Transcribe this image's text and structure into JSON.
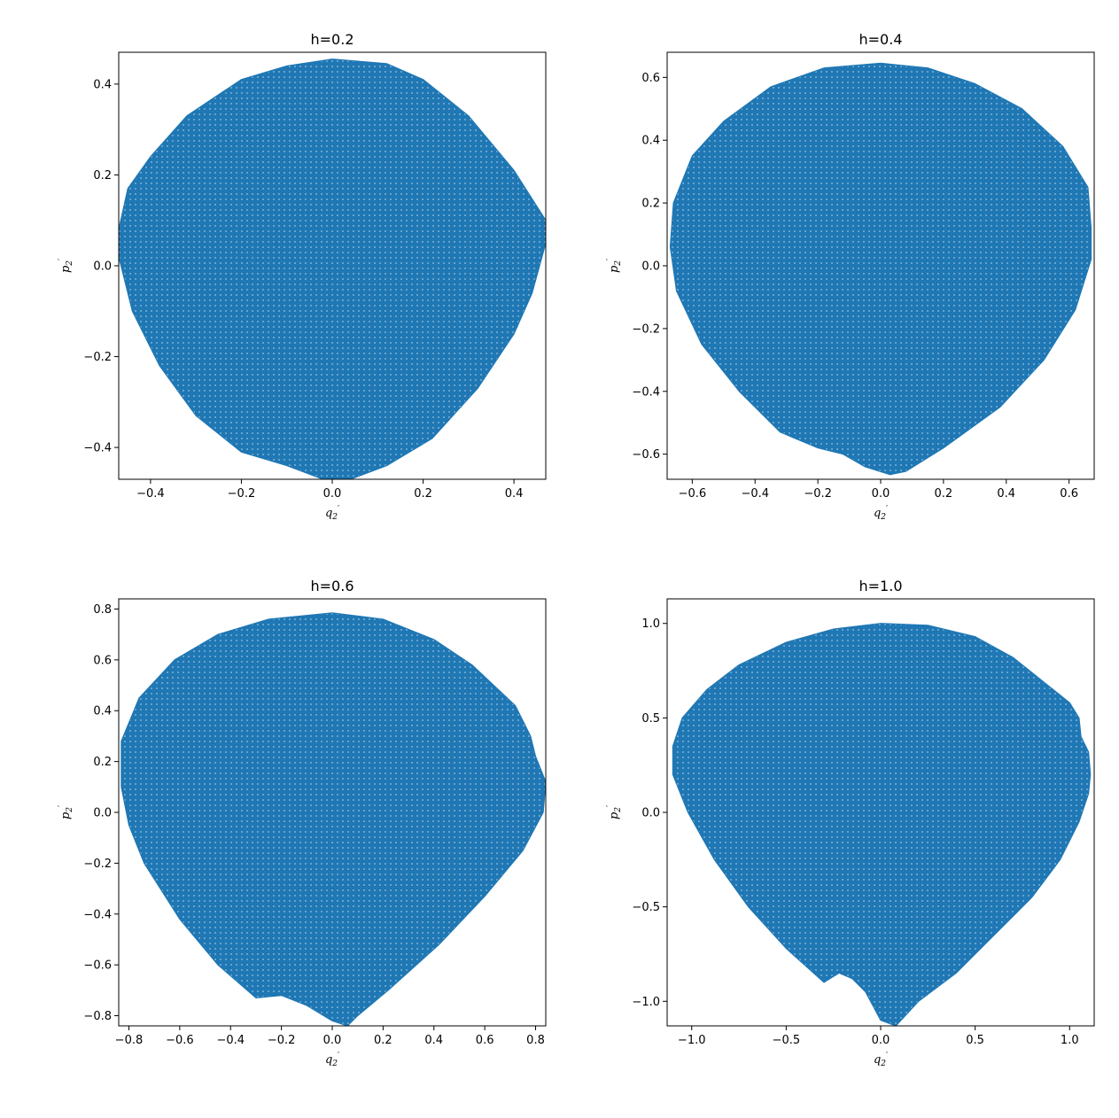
{
  "chart_data": [
    {
      "type": "scatter",
      "title": "h=0.2",
      "xlabel": "q'_2",
      "ylabel": "p'_2",
      "xlim": [
        -0.47,
        0.47
      ],
      "ylim": [
        -0.47,
        0.47
      ],
      "xticks": [
        -0.4,
        -0.2,
        0.0,
        0.2,
        0.4
      ],
      "yticks": [
        -0.4,
        -0.2,
        0.0,
        0.2,
        0.4
      ],
      "tick_labels_x": [
        "−0.4",
        "−0.2",
        "0.0",
        "0.2",
        "0.4"
      ],
      "tick_labels_y": [
        "−0.4",
        "−0.2",
        "0.0",
        "0.2",
        "0.4"
      ],
      "color": "#1f77b4",
      "boundary": [
        [
          0.0,
          0.455
        ],
        [
          0.12,
          0.445
        ],
        [
          0.2,
          0.41
        ],
        [
          0.3,
          0.33
        ],
        [
          0.4,
          0.21
        ],
        [
          0.47,
          0.1
        ],
        [
          0.47,
          0.05
        ],
        [
          0.44,
          -0.06
        ],
        [
          0.4,
          -0.15
        ],
        [
          0.32,
          -0.27
        ],
        [
          0.22,
          -0.38
        ],
        [
          0.12,
          -0.44
        ],
        [
          0.04,
          -0.47
        ],
        [
          -0.02,
          -0.47
        ],
        [
          -0.1,
          -0.44
        ],
        [
          -0.2,
          -0.41
        ],
        [
          -0.3,
          -0.33
        ],
        [
          -0.38,
          -0.22
        ],
        [
          -0.44,
          -0.1
        ],
        [
          -0.47,
          0.02
        ],
        [
          -0.47,
          0.08
        ],
        [
          -0.45,
          0.17
        ],
        [
          -0.4,
          0.24
        ],
        [
          -0.32,
          0.33
        ],
        [
          -0.2,
          0.41
        ],
        [
          -0.1,
          0.44
        ]
      ]
    },
    {
      "type": "scatter",
      "title": "h=0.4",
      "xlabel": "q'_2",
      "ylabel": "p'_2",
      "xlim": [
        -0.68,
        0.68
      ],
      "ylim": [
        -0.68,
        0.68
      ],
      "xticks": [
        -0.6,
        -0.4,
        -0.2,
        0.0,
        0.2,
        0.4,
        0.6
      ],
      "yticks": [
        -0.6,
        -0.4,
        -0.2,
        0.0,
        0.2,
        0.4,
        0.6
      ],
      "tick_labels_x": [
        "−0.6",
        "−0.4",
        "−0.2",
        "0.0",
        "0.2",
        "0.4",
        "0.6"
      ],
      "tick_labels_y": [
        "−0.6",
        "−0.4",
        "−0.2",
        "0.0",
        "0.2",
        "0.4",
        "0.6"
      ],
      "color": "#1f77b4",
      "boundary": [
        [
          0.0,
          0.645
        ],
        [
          0.15,
          0.63
        ],
        [
          0.3,
          0.58
        ],
        [
          0.45,
          0.5
        ],
        [
          0.58,
          0.38
        ],
        [
          0.66,
          0.25
        ],
        [
          0.67,
          0.12
        ],
        [
          0.67,
          0.02
        ],
        [
          0.62,
          -0.14
        ],
        [
          0.52,
          -0.3
        ],
        [
          0.38,
          -0.45
        ],
        [
          0.2,
          -0.58
        ],
        [
          0.08,
          -0.655
        ],
        [
          0.03,
          -0.665
        ],
        [
          -0.05,
          -0.64
        ],
        [
          -0.12,
          -0.6
        ],
        [
          -0.2,
          -0.58
        ],
        [
          -0.32,
          -0.53
        ],
        [
          -0.45,
          -0.4
        ],
        [
          -0.57,
          -0.25
        ],
        [
          -0.65,
          -0.08
        ],
        [
          -0.67,
          0.06
        ],
        [
          -0.66,
          0.2
        ],
        [
          -0.6,
          0.35
        ],
        [
          -0.5,
          0.46
        ],
        [
          -0.35,
          0.57
        ],
        [
          -0.18,
          0.63
        ]
      ]
    },
    {
      "type": "scatter",
      "title": "h=0.6",
      "xlabel": "q'_2",
      "ylabel": "p'_2",
      "xlim": [
        -0.84,
        0.84
      ],
      "ylim": [
        -0.84,
        0.84
      ],
      "xticks": [
        -0.8,
        -0.6,
        -0.4,
        -0.2,
        0.0,
        0.2,
        0.4,
        0.6,
        0.8
      ],
      "yticks": [
        -0.8,
        -0.6,
        -0.4,
        -0.2,
        0.0,
        0.2,
        0.4,
        0.6,
        0.8
      ],
      "tick_labels_x": [
        "−0.8",
        "−0.6",
        "−0.4",
        "−0.2",
        "0.0",
        "0.2",
        "0.4",
        "0.6",
        "0.8"
      ],
      "tick_labels_y": [
        "−0.8",
        "−0.6",
        "−0.4",
        "−0.2",
        "0.0",
        "0.2",
        "0.4",
        "0.6",
        "0.8"
      ],
      "color": "#1f77b4",
      "boundary": [
        [
          0.0,
          0.785
        ],
        [
          0.2,
          0.76
        ],
        [
          0.4,
          0.68
        ],
        [
          0.55,
          0.58
        ],
        [
          0.72,
          0.42
        ],
        [
          0.78,
          0.3
        ],
        [
          0.8,
          0.22
        ],
        [
          0.84,
          0.12
        ],
        [
          0.83,
          0.0
        ],
        [
          0.75,
          -0.15
        ],
        [
          0.6,
          -0.33
        ],
        [
          0.42,
          -0.52
        ],
        [
          0.22,
          -0.7
        ],
        [
          0.1,
          -0.8
        ],
        [
          0.06,
          -0.84
        ],
        [
          0.0,
          -0.82
        ],
        [
          -0.1,
          -0.76
        ],
        [
          -0.2,
          -0.72
        ],
        [
          -0.3,
          -0.73
        ],
        [
          -0.45,
          -0.6
        ],
        [
          -0.6,
          -0.42
        ],
        [
          -0.74,
          -0.2
        ],
        [
          -0.8,
          -0.05
        ],
        [
          -0.83,
          0.1
        ],
        [
          -0.83,
          0.28
        ],
        [
          -0.76,
          0.45
        ],
        [
          -0.62,
          0.6
        ],
        [
          -0.45,
          0.7
        ],
        [
          -0.25,
          0.76
        ]
      ]
    },
    {
      "type": "scatter",
      "title": "h=1.0",
      "xlabel": "q'_2",
      "ylabel": "p'_2",
      "xlim": [
        -1.13,
        1.13
      ],
      "ylim": [
        -1.13,
        1.13
      ],
      "xticks": [
        -1.0,
        -0.5,
        0.0,
        0.5,
        1.0
      ],
      "yticks": [
        -1.0,
        -0.5,
        0.0,
        0.5,
        1.0
      ],
      "tick_labels_x": [
        "−1.0",
        "−0.5",
        "0.0",
        "0.5",
        "1.0"
      ],
      "tick_labels_y": [
        "−1.0",
        "−0.5",
        "0.0",
        "0.5",
        "1.0"
      ],
      "color": "#1f77b4",
      "boundary": [
        [
          0.0,
          1.0
        ],
        [
          0.25,
          0.99
        ],
        [
          0.5,
          0.93
        ],
        [
          0.7,
          0.82
        ],
        [
          0.85,
          0.7
        ],
        [
          1.0,
          0.58
        ],
        [
          1.05,
          0.5
        ],
        [
          1.06,
          0.4
        ],
        [
          1.1,
          0.32
        ],
        [
          1.11,
          0.2
        ],
        [
          1.1,
          0.1
        ],
        [
          1.05,
          -0.05
        ],
        [
          0.95,
          -0.25
        ],
        [
          0.8,
          -0.45
        ],
        [
          0.6,
          -0.65
        ],
        [
          0.4,
          -0.85
        ],
        [
          0.2,
          -1.0
        ],
        [
          0.08,
          -1.13
        ],
        [
          0.0,
          -1.1
        ],
        [
          -0.08,
          -0.95
        ],
        [
          -0.15,
          -0.88
        ],
        [
          -0.22,
          -0.85
        ],
        [
          -0.3,
          -0.9
        ],
        [
          -0.5,
          -0.72
        ],
        [
          -0.7,
          -0.5
        ],
        [
          -0.88,
          -0.25
        ],
        [
          -1.02,
          0.0
        ],
        [
          -1.1,
          0.2
        ],
        [
          -1.1,
          0.35
        ],
        [
          -1.05,
          0.5
        ],
        [
          -0.92,
          0.65
        ],
        [
          -0.75,
          0.78
        ],
        [
          -0.5,
          0.9
        ],
        [
          -0.25,
          0.97
        ]
      ]
    }
  ]
}
